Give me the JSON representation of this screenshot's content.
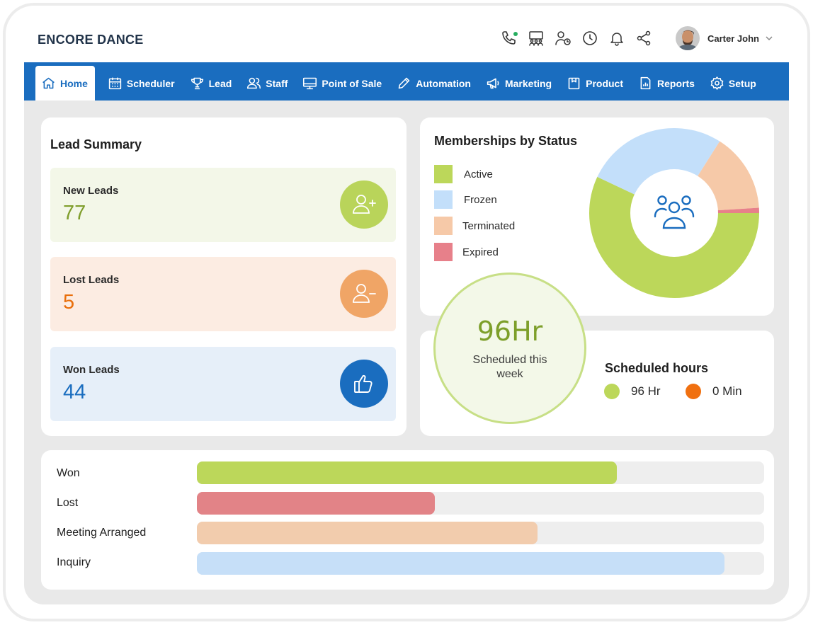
{
  "app": {
    "title": "ENCORE DANCE"
  },
  "header": {
    "icons": [
      "phone-icon",
      "team-icon",
      "user-clock-icon",
      "clock-icon",
      "bell-icon",
      "share-icon"
    ],
    "user": {
      "name": "Carter John"
    }
  },
  "nav": {
    "items": [
      {
        "label": "Home",
        "icon": "home-icon"
      },
      {
        "label": "Scheduler",
        "icon": "calendar-icon"
      },
      {
        "label": "Lead",
        "icon": "trophy-icon"
      },
      {
        "label": "Staff",
        "icon": "staff-icon"
      },
      {
        "label": "Point of Sale",
        "icon": "monitor-icon"
      },
      {
        "label": "Automation",
        "icon": "pencil-icon"
      },
      {
        "label": "Marketing",
        "icon": "megaphone-icon"
      },
      {
        "label": "Product",
        "icon": "box-icon"
      },
      {
        "label": "Reports",
        "icon": "report-icon"
      },
      {
        "label": "Setup",
        "icon": "gear-icon"
      }
    ],
    "active": "Home"
  },
  "lead_summary": {
    "title": "Lead Summary",
    "items": [
      {
        "label": "New Leads",
        "value": "77",
        "bg": "#f3f7e8",
        "value_color": "#7f9e2c",
        "icon_bg": "#b9d45a",
        "icon": "user-plus-icon"
      },
      {
        "label": "Lost Leads",
        "value": "5",
        "bg": "#fcece2",
        "value_color": "#e96f0c",
        "icon_bg": "#f0a566",
        "icon": "user-minus-icon"
      },
      {
        "label": "Won Leads",
        "value": "44",
        "bg": "#e6eff9",
        "value_color": "#1a6dbf",
        "icon_bg": "#1a6dbf",
        "icon": "thumbs-up-icon"
      }
    ]
  },
  "memberships": {
    "title": "Memberships by Status",
    "center_icon": "group-icon"
  },
  "chart_data": [
    {
      "type": "pie",
      "title": "Memberships by Status",
      "categories": [
        "Active",
        "Frozen",
        "Terminated",
        "Expired"
      ],
      "values": [
        57,
        27,
        15,
        1
      ],
      "colors": [
        "#bcd75a",
        "#c3dffa",
        "#f6c9a8",
        "#e7808a"
      ],
      "legend_position": "left"
    },
    {
      "type": "bar",
      "orientation": "horizontal",
      "categories": [
        "Won",
        "Lost",
        "Meeting Arranged",
        "Inquiry"
      ],
      "values": [
        74,
        42,
        60,
        93
      ],
      "xlim": [
        0,
        100
      ],
      "colors": [
        "#bcd75a",
        "#e28387",
        "#f2ccad",
        "#c6dff8"
      ]
    }
  ],
  "scheduled": {
    "big_value": "96Hr",
    "subtitle": "Scheduled this week",
    "title": "Scheduled hours",
    "legend": [
      {
        "label": "96 Hr",
        "color": "#bcd75a"
      },
      {
        "label": "0 Min",
        "color": "#f07010"
      }
    ]
  }
}
